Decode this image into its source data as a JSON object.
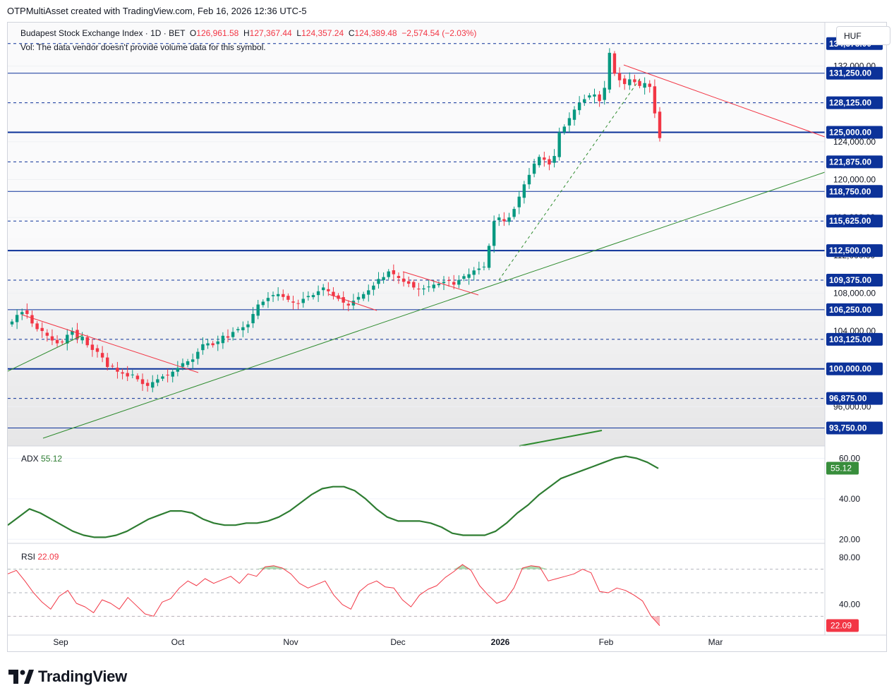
{
  "header": {
    "attribution": "OTPMultiAsset created with TradingView.com, Feb 16, 2026 12:36 UTC-5"
  },
  "legend": {
    "symbol": "Budapest Stock Exchange Index · 1D · BET",
    "open_label": "O",
    "open": "126,961.58",
    "high_label": "H",
    "high": "127,367.44",
    "low_label": "L",
    "low": "124,357.24",
    "close_label": "C",
    "close": "124,389.48",
    "change": "−2,574.54 (−2.03%)",
    "volume_note": "Vol: The data vendor doesn't provide volume data for this symbol."
  },
  "currency": "HUF",
  "colors": {
    "up": "#089981",
    "down": "#f23645",
    "level_line": "#0c3299",
    "trend_green": "#2e8b2e",
    "trend_red": "#f23645",
    "adx_line": "#2e7d32",
    "rsi_line": "#f23645"
  },
  "chart_data": [
    {
      "type": "candlestick",
      "title": "Budapest Stock Exchange Index · 1D · BET",
      "ylim": [
        92000,
        136000
      ],
      "x_ticks": [
        "Sep",
        "Oct",
        "Nov",
        "Dec",
        "2026",
        "Feb",
        "Mar"
      ],
      "y_ticks": [
        "132,000.00",
        "128,000.00",
        "124,000.00",
        "120,000.00",
        "116,000.00",
        "112,000.00",
        "108,000.00",
        "104,000.00",
        "100,000.00",
        "96,000.00"
      ],
      "levels": [
        {
          "value": 134375,
          "label": "134,375.00",
          "style": "dashed"
        },
        {
          "value": 131250,
          "label": "131,250.00",
          "style": "solid"
        },
        {
          "value": 128125,
          "label": "128,125.00",
          "style": "dashed"
        },
        {
          "value": 125000,
          "label": "125,000.00",
          "style": "solid-bold"
        },
        {
          "value": 121875,
          "label": "121,875.00",
          "style": "dashed"
        },
        {
          "value": 118750,
          "label": "118,750.00",
          "style": "solid"
        },
        {
          "value": 115625,
          "label": "115,625.00",
          "style": "dashed"
        },
        {
          "value": 112500,
          "label": "112,500.00",
          "style": "solid-bold"
        },
        {
          "value": 109375,
          "label": "109,375.00",
          "style": "dashed"
        },
        {
          "value": 106250,
          "label": "106,250.00",
          "style": "solid"
        },
        {
          "value": 103125,
          "label": "103,125.00",
          "style": "dashed"
        },
        {
          "value": 100000,
          "label": "100,000.00",
          "style": "solid-bold"
        },
        {
          "value": 96875,
          "label": "96,875.00",
          "style": "dashed"
        },
        {
          "value": 93750,
          "label": "93,750.00",
          "style": "solid"
        }
      ],
      "closes": [
        105000,
        105700,
        106000,
        105800,
        104800,
        104200,
        104000,
        103500,
        103000,
        102700,
        102800,
        103600,
        104000,
        103200,
        103400,
        102500,
        102000,
        101800,
        101200,
        100200,
        100300,
        99700,
        99500,
        99200,
        99400,
        98900,
        98400,
        98200,
        98600,
        98900,
        99200,
        99300,
        99700,
        100100,
        100600,
        100800,
        101000,
        101800,
        102600,
        102700,
        102500,
        102900,
        103500,
        103300,
        103900,
        104200,
        104400,
        104700,
        105800,
        106800,
        107100,
        107500,
        107800,
        107900,
        107600,
        107300,
        107000,
        106900,
        107400,
        107700,
        107800,
        108200,
        108600,
        108200,
        107700,
        107400,
        107000,
        106700,
        107200,
        107600,
        107900,
        108300,
        108800,
        109500,
        109700,
        110300,
        110000,
        109600,
        109200,
        109000,
        108600,
        108400,
        108500,
        108700,
        108900,
        109000,
        109200,
        109300,
        108900,
        109400,
        109800,
        110000,
        110400,
        110600,
        110800,
        113000,
        115600,
        116000,
        115600,
        116000,
        116900,
        118200,
        119500,
        120500,
        121700,
        122400,
        122100,
        121600,
        122500,
        125000,
        125600,
        126500,
        127400,
        128100,
        128500,
        128900,
        129000,
        128300,
        129700,
        133400,
        131200,
        130500,
        130100,
        130600,
        130300,
        129900,
        130200,
        129800,
        127000,
        124389
      ],
      "highs_lows_note": "OHLC data for most recent bar shown in legend"
    },
    {
      "type": "line",
      "title": "ADX",
      "series": [
        {
          "name": "ADX",
          "last_value": "55.12",
          "values": [
            27,
            31,
            35,
            33,
            30,
            27,
            24,
            22,
            21,
            21,
            22,
            24,
            27,
            30,
            32,
            34,
            34,
            33,
            30,
            28,
            27,
            27,
            28,
            28,
            29,
            31,
            34,
            38,
            42,
            45,
            46,
            46,
            44,
            40,
            35,
            31,
            29,
            29,
            29,
            28,
            26,
            23,
            22,
            22,
            22,
            24,
            28,
            33,
            37,
            42,
            46,
            50,
            52,
            54,
            56,
            58,
            60,
            61,
            60,
            58,
            55
          ]
        }
      ],
      "ylim": [
        18,
        64
      ],
      "y_ticks": [
        "60.00",
        "40.00",
        "20.00"
      ]
    },
    {
      "type": "line",
      "title": "RSI",
      "series": [
        {
          "name": "RSI",
          "last_value": "22.09",
          "values": [
            66,
            69,
            60,
            50,
            42,
            36,
            47,
            52,
            41,
            38,
            33,
            44,
            41,
            36,
            46,
            39,
            32,
            30,
            42,
            45,
            54,
            60,
            56,
            62,
            58,
            61,
            64,
            58,
            66,
            64,
            72,
            73,
            71,
            66,
            58,
            54,
            57,
            60,
            48,
            40,
            36,
            51,
            57,
            60,
            55,
            54,
            44,
            38,
            48,
            53,
            56,
            63,
            68,
            74,
            69,
            56,
            48,
            41,
            44,
            54,
            71,
            73,
            72,
            60,
            62,
            64,
            66,
            70,
            67,
            51,
            50,
            54,
            52,
            48,
            43,
            30,
            22
          ]
        }
      ],
      "ylim": [
        14,
        92
      ],
      "y_ticks": [
        "80.00",
        "40.00"
      ]
    }
  ],
  "indicators": {
    "adx_label": "ADX",
    "adx_value": "55.12",
    "rsi_label": "RSI",
    "rsi_value": "22.09"
  },
  "footer": {
    "brand": "TradingView"
  }
}
